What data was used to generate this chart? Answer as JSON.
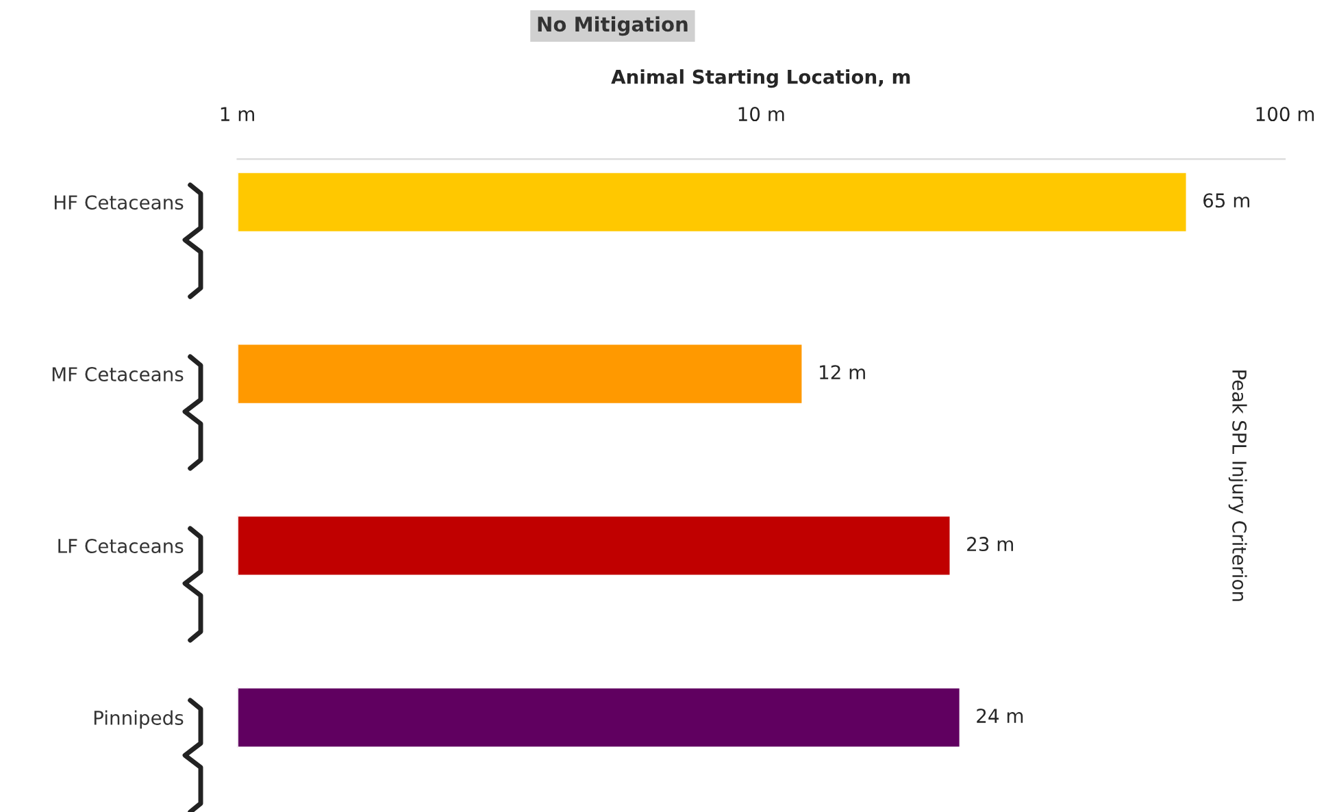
{
  "chart_data": {
    "type": "bar",
    "orientation": "horizontal",
    "title": "No Mitigation",
    "xlabel": "Animal Starting Location, m",
    "categories": [
      "HF Cetaceans",
      "MF Cetaceans",
      "LF Cetaceans",
      "Pinnipeds"
    ],
    "values": [
      65,
      12,
      23,
      24
    ],
    "colors": [
      "#ffc800",
      "#ff9900",
      "#c00000",
      "#600060"
    ],
    "value_labels": [
      "65 m",
      "12 m",
      "23 m",
      "24 m"
    ],
    "log": "x",
    "xlim": [
      1,
      100
    ],
    "xticks": [
      {
        "value": 1,
        "label": "1 m"
      },
      {
        "value": 10,
        "label": "10 m"
      },
      {
        "value": 100,
        "label": "100 m"
      }
    ],
    "annotations": [
      "Peak SPL Injury Criterion"
    ],
    "grid": false,
    "legend": false
  }
}
